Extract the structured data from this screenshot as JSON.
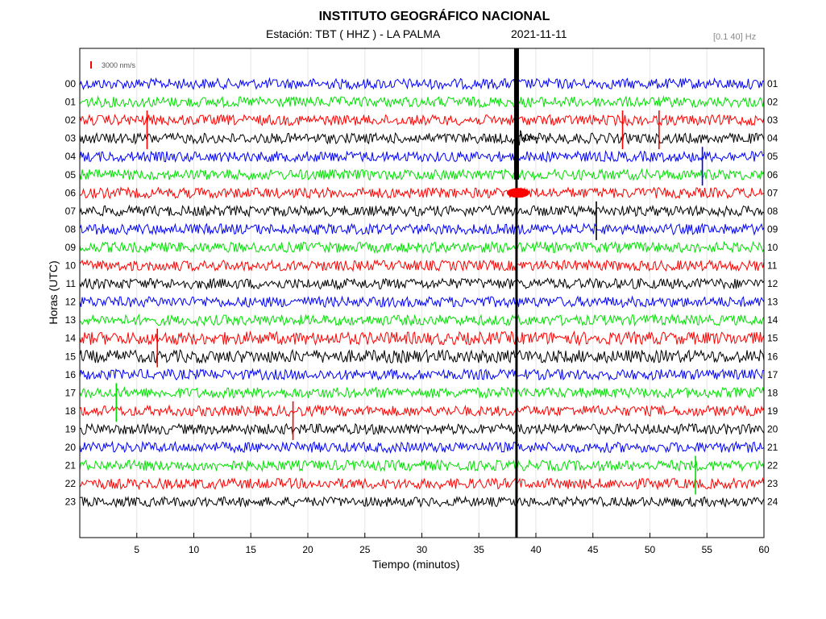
{
  "header": {
    "title": "INSTITUTO GEOGRÁFICO NACIONAL",
    "station": "Estación:  TBT ( HHZ ) - LA PALMA",
    "date": "2021-11-11",
    "filter": "[0.1 40] Hz"
  },
  "chart_data": {
    "type": "line",
    "xlabel": "Tiempo (minutos)",
    "ylabel": "Horas (UTC)",
    "xlim": [
      0,
      60
    ],
    "x_ticks": [
      5,
      10,
      15,
      20,
      25,
      30,
      35,
      40,
      45,
      50,
      55,
      60
    ],
    "left_hour_labels": [
      "00",
      "01",
      "02",
      "03",
      "04",
      "05",
      "06",
      "07",
      "08",
      "09",
      "10",
      "11",
      "12",
      "13",
      "14",
      "15",
      "16",
      "17",
      "18",
      "19",
      "20",
      "21",
      "22",
      "23"
    ],
    "right_hour_labels": [
      "01",
      "02",
      "03",
      "04",
      "05",
      "06",
      "07",
      "08",
      "09",
      "10",
      "11",
      "12",
      "13",
      "14",
      "15",
      "16",
      "17",
      "18",
      "19",
      "20",
      "21",
      "22",
      "23",
      "24"
    ],
    "scale_bar_label": "3000 nm/s",
    "trace_colors": [
      "#0000ff",
      "#00e000",
      "#ff0000",
      "#000000"
    ],
    "scale_bar_color": "#ff0000",
    "grid": true,
    "main_event": {
      "minute": 38.3,
      "spans_hours": [
        0,
        23
      ]
    },
    "transient_events": [
      {
        "hour": 2,
        "minute": 5.9
      },
      {
        "hour": 2,
        "minute": 47.6
      },
      {
        "hour": 2,
        "minute": 50.8
      },
      {
        "hour": 4,
        "minute": 54.6
      },
      {
        "hour": 7,
        "minute": 45.3
      },
      {
        "hour": 14,
        "minute": 6.8
      },
      {
        "hour": 17,
        "minute": 3.2
      },
      {
        "hour": 18,
        "minute": 18.7
      },
      {
        "hour": 21,
        "minute": 54.0
      }
    ]
  }
}
